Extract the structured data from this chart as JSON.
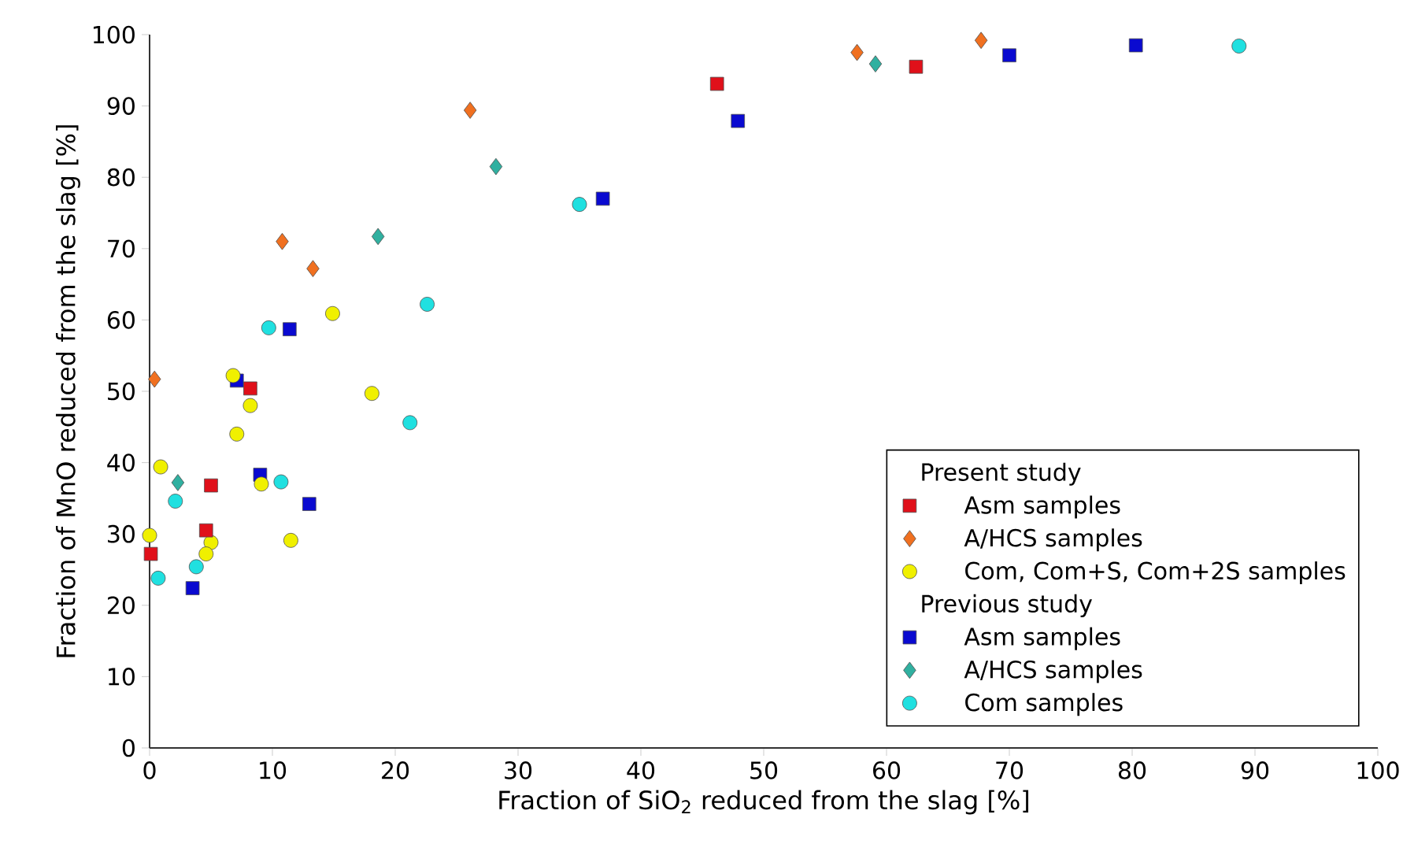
{
  "chart_data": {
    "type": "scatter",
    "xlabel": "Fraction of SiO$_{2}$ reduced from the slag [%]",
    "ylabel": "Fraction of MnO reduced from the slag [%]",
    "annotations": [
      "Present study",
      "Previous study"
    ],
    "xlim": [
      0,
      100
    ],
    "ylim": [
      0,
      100
    ],
    "xticks": [
      0,
      10,
      20,
      30,
      40,
      50,
      60,
      70,
      80,
      90,
      100
    ],
    "yticks": [
      0,
      10,
      20,
      30,
      40,
      50,
      60,
      70,
      80,
      90,
      100
    ],
    "grid": false,
    "legend": "bottom right",
    "series": [
      {
        "name": "Asm samples",
        "color": "#e0101a",
        "marker": "square",
        "x": [
          0.1,
          4.6,
          5.0,
          8.2,
          46.2,
          62.4
        ],
        "values": [
          27.2,
          30.5,
          36.8,
          50.4,
          93.1,
          95.5
        ]
      },
      {
        "name": "A/HCS samples",
        "color": "#f07020",
        "marker": "diamond",
        "x": [
          0.4,
          10.8,
          13.3,
          26.1,
          57.6,
          67.7
        ],
        "values": [
          51.7,
          71.0,
          67.2,
          89.4,
          97.5,
          99.2
        ]
      },
      {
        "name": "Com, Com+S, Com+2S samples",
        "color": "#f0f000",
        "marker": "circle",
        "x": [
          0.0,
          0.9,
          5.0,
          4.6,
          9.1,
          11.5,
          6.8,
          8.2,
          7.1,
          14.9,
          18.1
        ],
        "values": [
          29.8,
          39.4,
          28.8,
          27.2,
          37.0,
          29.1,
          52.2,
          48.0,
          44.0,
          60.9,
          49.7
        ]
      },
      {
        "name": "Asm samples",
        "color": "#0a0ad0",
        "marker": "square",
        "x": [
          3.5,
          13.0,
          9.0,
          11.4,
          7.1,
          36.9,
          47.9,
          70.0,
          80.3
        ],
        "values": [
          22.4,
          34.2,
          38.3,
          58.7,
          51.5,
          77.0,
          87.9,
          97.1,
          98.5
        ]
      },
      {
        "name": "A/HCS samples",
        "color": "#30b0a0",
        "marker": "diamond",
        "x": [
          2.3,
          18.6,
          28.2,
          59.1
        ],
        "values": [
          37.2,
          71.7,
          81.5,
          95.9
        ]
      },
      {
        "name": "Com samples",
        "color": "#20e0e0",
        "marker": "circle",
        "x": [
          0.7,
          2.1,
          3.8,
          10.7,
          9.7,
          21.2,
          22.6,
          35.0,
          88.7
        ],
        "values": [
          23.8,
          34.6,
          25.4,
          37.3,
          58.9,
          45.6,
          62.2,
          76.2,
          98.4
        ]
      }
    ]
  }
}
